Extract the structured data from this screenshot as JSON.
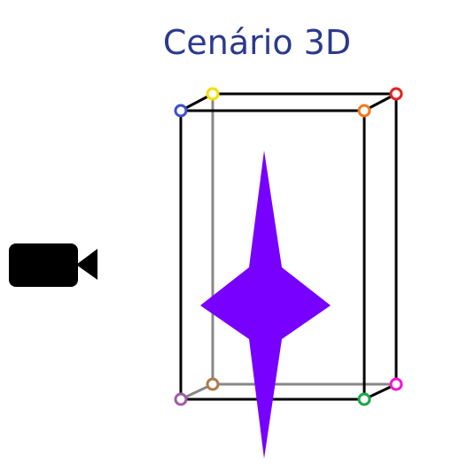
{
  "title": "Cenário 3D",
  "colors": {
    "title": "#2b3a8c",
    "box_edge": "#000000",
    "hidden_edge": "#888888",
    "shape_fill": "#7700ff",
    "camera": "#000000"
  },
  "icons": {
    "camera": "video-camera-icon"
  },
  "vertices": [
    {
      "id": "front-top-left",
      "color": "#3d4fcc"
    },
    {
      "id": "back-top-left",
      "color": "#f2e000"
    },
    {
      "id": "back-top-right",
      "color": "#e52222"
    },
    {
      "id": "front-top-right",
      "color": "#f07a20"
    },
    {
      "id": "front-bottom-left",
      "color": "#a05aa8"
    },
    {
      "id": "back-bottom-left",
      "color": "#b07a4a"
    },
    {
      "id": "back-bottom-right",
      "color": "#f018d0"
    },
    {
      "id": "front-bottom-right",
      "color": "#18a848"
    }
  ]
}
